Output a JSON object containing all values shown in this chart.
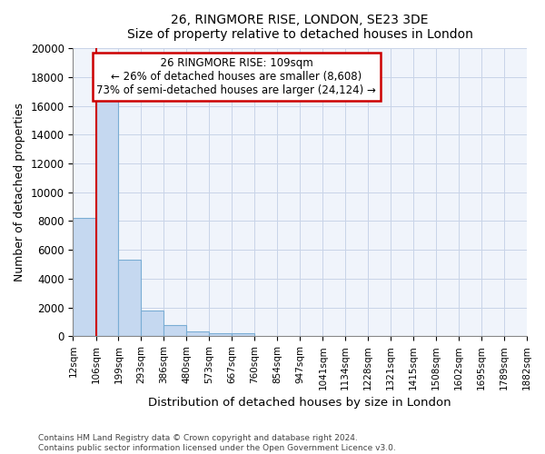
{
  "title1": "26, RINGMORE RISE, LONDON, SE23 3DE",
  "title2": "Size of property relative to detached houses in London",
  "xlabel": "Distribution of detached houses by size in London",
  "ylabel": "Number of detached properties",
  "annotation_title": "26 RINGMORE RISE: 109sqm",
  "annotation_line1": "← 26% of detached houses are smaller (8,608)",
  "annotation_line2": "73% of semi-detached houses are larger (24,124) →",
  "property_size_sqm": 109,
  "bin_edges": [
    12,
    106,
    199,
    293,
    386,
    480,
    573,
    667,
    760,
    854,
    947,
    1041,
    1134,
    1228,
    1321,
    1415,
    1508,
    1602,
    1695,
    1789,
    1882
  ],
  "bin_counts": [
    8200,
    16600,
    5300,
    1800,
    800,
    350,
    200,
    200,
    0,
    0,
    0,
    0,
    0,
    0,
    0,
    0,
    0,
    0,
    0,
    0
  ],
  "bar_color": "#c5d8f0",
  "bar_edge_color": "#7aadd4",
  "vline_color": "#cc0000",
  "annotation_box_edge_color": "#cc0000",
  "annotation_box_face_color": "#ffffff",
  "background_color": "#ffffff",
  "axes_bg_color": "#f0f4fb",
  "grid_color": "#c8d4e8",
  "footer1": "Contains HM Land Registry data © Crown copyright and database right 2024.",
  "footer2": "Contains public sector information licensed under the Open Government Licence v3.0.",
  "ylim": [
    0,
    20000
  ],
  "yticks": [
    0,
    2000,
    4000,
    6000,
    8000,
    10000,
    12000,
    14000,
    16000,
    18000,
    20000
  ]
}
